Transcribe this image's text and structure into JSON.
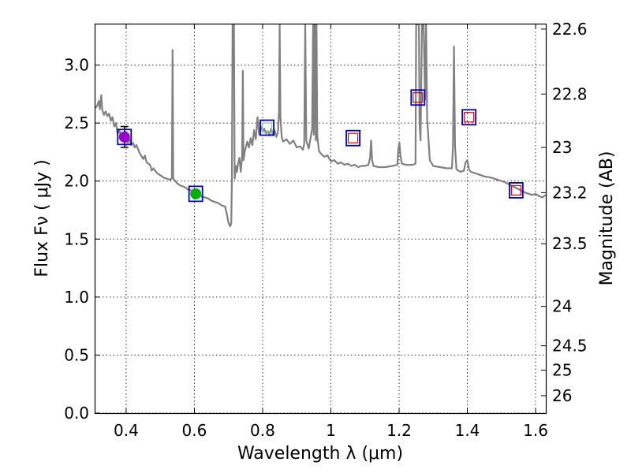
{
  "chart_data": {
    "type": "line",
    "xlabel": "Wavelength  λ (μm)",
    "ylabel": "Flux  Fν  ( μJy )",
    "y2label": "Magnitude (AB)",
    "xlim": [
      0.31,
      1.63
    ],
    "ylim": [
      0.0,
      3.35
    ],
    "grid": true,
    "x_ticks": [
      0.4,
      0.6,
      0.8,
      1.0,
      1.2,
      1.4,
      1.6
    ],
    "x_tick_labels": [
      "0.4",
      "0.6",
      "0.8",
      "1",
      "1.2",
      "1.4",
      "1.6"
    ],
    "y_ticks": [
      0.0,
      0.5,
      1.0,
      1.5,
      2.0,
      2.5,
      3.0
    ],
    "y_tick_labels": [
      "0.0",
      "0.5",
      "1.0",
      "1.5",
      "2.0",
      "2.5",
      "3.0"
    ],
    "y2_ticks": [
      {
        "flux": 3.31,
        "label": "22.6"
      },
      {
        "flux": 2.75,
        "label": "22.8"
      },
      {
        "flux": 2.29,
        "label": "23"
      },
      {
        "flux": 1.9,
        "label": "23.2"
      },
      {
        "flux": 1.46,
        "label": "23.5"
      },
      {
        "flux": 0.92,
        "label": "24"
      },
      {
        "flux": 0.58,
        "label": "24.5"
      },
      {
        "flux": 0.37,
        "label": "25"
      },
      {
        "flux": 0.15,
        "label": "26"
      }
    ],
    "series": [
      {
        "name": "model spectrum",
        "color": "#808080",
        "points": [
          [
            0.31,
            2.63
          ],
          [
            0.315,
            2.65
          ],
          [
            0.32,
            2.69
          ],
          [
            0.323,
            2.62
          ],
          [
            0.327,
            2.74
          ],
          [
            0.33,
            2.61
          ],
          [
            0.335,
            2.57
          ],
          [
            0.34,
            2.6
          ],
          [
            0.345,
            2.56
          ],
          [
            0.35,
            2.58
          ],
          [
            0.355,
            2.52
          ],
          [
            0.36,
            2.55
          ],
          [
            0.365,
            2.47
          ],
          [
            0.37,
            2.5
          ],
          [
            0.375,
            2.41
          ],
          [
            0.38,
            2.44
          ],
          [
            0.385,
            2.38
          ],
          [
            0.39,
            2.4
          ],
          [
            0.395,
            2.36
          ],
          [
            0.4,
            2.39
          ],
          [
            0.405,
            2.33
          ],
          [
            0.41,
            2.36
          ],
          [
            0.415,
            2.31
          ],
          [
            0.42,
            2.33
          ],
          [
            0.425,
            2.29
          ],
          [
            0.43,
            2.31
          ],
          [
            0.44,
            2.24
          ],
          [
            0.45,
            2.19
          ],
          [
            0.455,
            2.22
          ],
          [
            0.46,
            2.16
          ],
          [
            0.47,
            2.14
          ],
          [
            0.475,
            2.09
          ],
          [
            0.48,
            2.11
          ],
          [
            0.49,
            2.07
          ],
          [
            0.5,
            2.05
          ],
          [
            0.51,
            2.03
          ],
          [
            0.52,
            2.02
          ],
          [
            0.53,
            2.01
          ],
          [
            0.534,
            2.03
          ],
          [
            0.536,
            3.13
          ],
          [
            0.538,
            2.02
          ],
          [
            0.55,
            1.98
          ],
          [
            0.56,
            1.96
          ],
          [
            0.57,
            1.95
          ],
          [
            0.58,
            1.93
          ],
          [
            0.59,
            1.92
          ],
          [
            0.6,
            1.9
          ],
          [
            0.61,
            1.88
          ],
          [
            0.62,
            1.87
          ],
          [
            0.63,
            1.86
          ],
          [
            0.64,
            1.85
          ],
          [
            0.65,
            1.83
          ],
          [
            0.66,
            1.82
          ],
          [
            0.67,
            1.81
          ],
          [
            0.68,
            1.79
          ],
          [
            0.69,
            1.78
          ],
          [
            0.695,
            1.72
          ],
          [
            0.7,
            1.64
          ],
          [
            0.705,
            1.61
          ],
          [
            0.708,
            1.64
          ],
          [
            0.71,
            2.0
          ],
          [
            0.712,
            3.35
          ],
          [
            0.716,
            3.35
          ],
          [
            0.718,
            2.02
          ],
          [
            0.722,
            2.13
          ],
          [
            0.725,
            2.08
          ],
          [
            0.728,
            2.15
          ],
          [
            0.732,
            2.2
          ],
          [
            0.736,
            2.08
          ],
          [
            0.74,
            2.22
          ],
          [
            0.742,
            2.95
          ],
          [
            0.744,
            2.18
          ],
          [
            0.748,
            2.26
          ],
          [
            0.755,
            2.34
          ],
          [
            0.76,
            2.29
          ],
          [
            0.765,
            2.37
          ],
          [
            0.77,
            2.31
          ],
          [
            0.775,
            2.44
          ],
          [
            0.78,
            2.36
          ],
          [
            0.785,
            2.55
          ],
          [
            0.79,
            2.4
          ],
          [
            0.795,
            2.47
          ],
          [
            0.8,
            2.43
          ],
          [
            0.805,
            2.45
          ],
          [
            0.81,
            2.41
          ],
          [
            0.815,
            2.43
          ],
          [
            0.82,
            2.4
          ],
          [
            0.825,
            2.45
          ],
          [
            0.83,
            2.4
          ],
          [
            0.835,
            2.44
          ],
          [
            0.84,
            2.38
          ],
          [
            0.845,
            2.42
          ],
          [
            0.848,
            2.6
          ],
          [
            0.85,
            3.35
          ],
          [
            0.852,
            2.55
          ],
          [
            0.856,
            2.38
          ],
          [
            0.86,
            2.34
          ],
          [
            0.87,
            2.36
          ],
          [
            0.88,
            2.32
          ],
          [
            0.89,
            2.35
          ],
          [
            0.9,
            2.29
          ],
          [
            0.91,
            2.3
          ],
          [
            0.918,
            2.27
          ],
          [
            0.922,
            2.32
          ],
          [
            0.925,
            3.35
          ],
          [
            0.928,
            2.35
          ],
          [
            0.935,
            2.28
          ],
          [
            0.945,
            2.45
          ],
          [
            0.948,
            3.35
          ],
          [
            0.95,
            2.4
          ],
          [
            0.953,
            3.35
          ],
          [
            0.956,
            2.35
          ],
          [
            0.958,
            3.35
          ],
          [
            0.96,
            2.4
          ],
          [
            0.965,
            2.26
          ],
          [
            0.97,
            2.24
          ],
          [
            0.98,
            2.21
          ],
          [
            0.99,
            2.22
          ],
          [
            1.0,
            2.17
          ],
          [
            1.01,
            2.18
          ],
          [
            1.02,
            2.15
          ],
          [
            1.03,
            2.16
          ],
          [
            1.04,
            2.14
          ],
          [
            1.05,
            2.15
          ],
          [
            1.06,
            2.13
          ],
          [
            1.07,
            2.14
          ],
          [
            1.08,
            2.12
          ],
          [
            1.09,
            2.13
          ],
          [
            1.1,
            2.13
          ],
          [
            1.11,
            2.14
          ],
          [
            1.115,
            2.2
          ],
          [
            1.118,
            2.35
          ],
          [
            1.121,
            2.18
          ],
          [
            1.125,
            2.13
          ],
          [
            1.14,
            2.12
          ],
          [
            1.16,
            2.12
          ],
          [
            1.18,
            2.13
          ],
          [
            1.195,
            2.14
          ],
          [
            1.198,
            2.28
          ],
          [
            1.201,
            2.33
          ],
          [
            1.204,
            2.22
          ],
          [
            1.208,
            2.15
          ],
          [
            1.22,
            2.14
          ],
          [
            1.24,
            2.14
          ],
          [
            1.248,
            2.15
          ],
          [
            1.25,
            3.35
          ],
          [
            1.258,
            3.35
          ],
          [
            1.26,
            2.5
          ],
          [
            1.263,
            2.35
          ],
          [
            1.267,
            3.35
          ],
          [
            1.272,
            3.35
          ],
          [
            1.276,
            2.7
          ],
          [
            1.279,
            3.35
          ],
          [
            1.282,
            2.55
          ],
          [
            1.29,
            2.18
          ],
          [
            1.3,
            2.13
          ],
          [
            1.32,
            2.12
          ],
          [
            1.34,
            2.11
          ],
          [
            1.355,
            2.11
          ],
          [
            1.358,
            2.3
          ],
          [
            1.361,
            3.16
          ],
          [
            1.364,
            2.3
          ],
          [
            1.368,
            2.1
          ],
          [
            1.38,
            2.08
          ],
          [
            1.39,
            2.09
          ],
          [
            1.395,
            2.16
          ],
          [
            1.4,
            2.18
          ],
          [
            1.405,
            2.1
          ],
          [
            1.41,
            2.08
          ],
          [
            1.43,
            2.06
          ],
          [
            1.45,
            2.04
          ],
          [
            1.47,
            2.03
          ],
          [
            1.49,
            2.01
          ],
          [
            1.51,
            1.99
          ],
          [
            1.53,
            1.96
          ],
          [
            1.55,
            1.93
          ],
          [
            1.57,
            1.9
          ],
          [
            1.59,
            1.88
          ],
          [
            1.6,
            1.89
          ],
          [
            1.61,
            1.87
          ],
          [
            1.62,
            1.86
          ],
          [
            1.63,
            1.88
          ]
        ]
      }
    ],
    "photometry": [
      {
        "name": "violet-point",
        "x": 0.395,
        "y": 2.38,
        "marker": "circle",
        "color": "#9b00cc",
        "err": 0.09,
        "box": true,
        "box_color": "#0000cc",
        "err_color": "#000000"
      },
      {
        "name": "green-point",
        "x": 0.604,
        "y": 1.89,
        "marker": "circle",
        "color": "#00b000",
        "box": true,
        "box_color": "#0000cc"
      },
      {
        "name": "point-0.81",
        "x": 0.813,
        "y": 2.46,
        "marker": "square",
        "color": "#90cc90",
        "box": true,
        "box_color": "#0000cc"
      },
      {
        "name": "point-1.06",
        "x": 1.065,
        "y": 2.37,
        "marker": "square",
        "color": "#dd0000",
        "box": true,
        "box_color": "#0000cc"
      },
      {
        "name": "point-1.25",
        "x": 1.255,
        "y": 2.72,
        "marker": "square",
        "color": "#dd0000",
        "box": true,
        "box_color": "#0000cc"
      },
      {
        "name": "point-1.40",
        "x": 1.405,
        "y": 2.55,
        "marker": "square",
        "color": "#dd0000",
        "box": true,
        "box_color": "#0000cc"
      },
      {
        "name": "point-1.54",
        "x": 1.543,
        "y": 1.92,
        "marker": "square",
        "color": "#dd0000",
        "box": true,
        "box_color": "#0000cc"
      }
    ]
  }
}
